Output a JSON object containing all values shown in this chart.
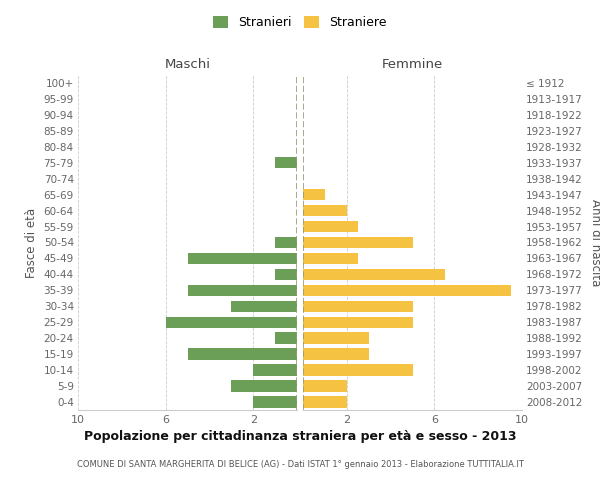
{
  "age_groups": [
    "100+",
    "95-99",
    "90-94",
    "85-89",
    "80-84",
    "75-79",
    "70-74",
    "65-69",
    "60-64",
    "55-59",
    "50-54",
    "45-49",
    "40-44",
    "35-39",
    "30-34",
    "25-29",
    "20-24",
    "15-19",
    "10-14",
    "5-9",
    "0-4"
  ],
  "birth_years": [
    "≤ 1912",
    "1913-1917",
    "1918-1922",
    "1923-1927",
    "1928-1932",
    "1933-1937",
    "1938-1942",
    "1943-1947",
    "1948-1952",
    "1953-1957",
    "1958-1962",
    "1963-1967",
    "1968-1972",
    "1973-1977",
    "1978-1982",
    "1983-1987",
    "1988-1992",
    "1993-1997",
    "1998-2002",
    "2003-2007",
    "2008-2012"
  ],
  "maschi": [
    0,
    0,
    0,
    0,
    0,
    1,
    0,
    0,
    0,
    0,
    1,
    5,
    1,
    5,
    3,
    6,
    1,
    5,
    2,
    3,
    2
  ],
  "femmine": [
    0,
    0,
    0,
    0,
    0,
    0,
    0,
    1,
    2,
    2.5,
    5,
    2.5,
    6.5,
    9.5,
    5,
    5,
    3,
    3,
    5,
    2,
    2
  ],
  "male_color": "#6b9e56",
  "female_color": "#f5c242",
  "background_color": "#ffffff",
  "grid_color": "#cccccc",
  "title": "Popolazione per cittadinanza straniera per età e sesso - 2013",
  "subtitle": "COMUNE DI SANTA MARGHERITA DI BELICE (AG) - Dati ISTAT 1° gennaio 2013 - Elaborazione TUTTITALIA.IT",
  "ylabel_left": "Fasce di età",
  "ylabel_right": "Anni di nascita",
  "header_left": "Maschi",
  "header_right": "Femmine",
  "legend_stranieri": "Stranieri",
  "legend_straniere": "Straniere",
  "xlim": 10,
  "bar_height": 0.72
}
